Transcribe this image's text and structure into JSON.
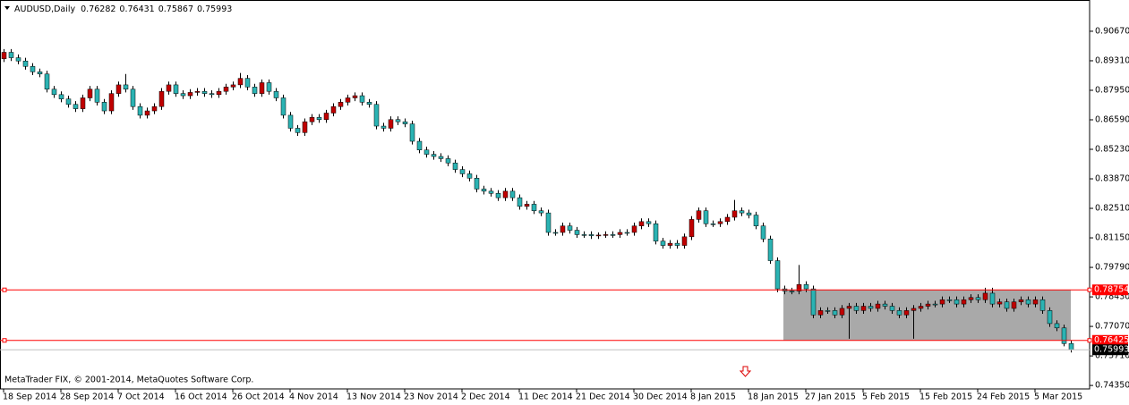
{
  "chart_data": {
    "type": "candlestick",
    "title": "AUDUSD,Daily",
    "footer": "MetaTrader FIX, © 2001-2014, MetaQuotes Software Corp.",
    "up_color": "#c00000",
    "down_color": "#2bb3b3",
    "categories": [
      "18 Sep 2014",
      null,
      null,
      null,
      null,
      null,
      null,
      null,
      "28 Sep 2014",
      null,
      null,
      null,
      null,
      null,
      null,
      null,
      "7 Oct 2014",
      null,
      null,
      null,
      null,
      null,
      null,
      null,
      "16 Oct 2014",
      null,
      null,
      null,
      null,
      null,
      null,
      null,
      "26 Oct 2014",
      null,
      null,
      null,
      null,
      null,
      null,
      null,
      "4 Nov 2014",
      null,
      null,
      null,
      null,
      null,
      null,
      null,
      "13 Nov 2014",
      null,
      null,
      null,
      null,
      null,
      null,
      null,
      "23 Nov 2014",
      null,
      null,
      null,
      null,
      null,
      null,
      null,
      "2 Dec 2014",
      null,
      null,
      null,
      null,
      null,
      null,
      null,
      "11 Dec 2014",
      null,
      null,
      null,
      null,
      null,
      null,
      null,
      "21 Dec 2014",
      null,
      null,
      null,
      null,
      null,
      null,
      null,
      "30 Dec 2014",
      null,
      null,
      null,
      null,
      null,
      null,
      null,
      "8 Jan 2015",
      null,
      null,
      null,
      null,
      null,
      null,
      null,
      "18 Jan 2015",
      null,
      null,
      null,
      null,
      null,
      null,
      null,
      "27 Jan 2015",
      null,
      null,
      null,
      null,
      null,
      null,
      null,
      "5 Feb 2015",
      null,
      null,
      null,
      null,
      null,
      null,
      null,
      "15 Feb 2015",
      null,
      null,
      null,
      null,
      null,
      null,
      null,
      "24 Feb 2015",
      null,
      null,
      null,
      null,
      null,
      null,
      null,
      "5 Mar 2015",
      null,
      null,
      null,
      null,
      null
    ],
    "open": [
      0.894,
      0.897,
      0.8945,
      0.893,
      0.8905,
      0.888,
      0.887,
      0.88,
      0.8775,
      0.8755,
      0.873,
      0.871,
      0.876,
      0.88,
      0.874,
      0.87,
      0.878,
      0.882,
      0.88,
      0.872,
      0.868,
      0.87,
      0.872,
      0.879,
      0.882,
      0.878,
      0.877,
      0.8785,
      0.879,
      0.878,
      0.8775,
      0.879,
      0.881,
      0.882,
      0.885,
      0.881,
      0.878,
      0.883,
      0.879,
      0.876,
      0.868,
      0.862,
      0.86,
      0.865,
      0.867,
      0.866,
      0.869,
      0.872,
      0.874,
      0.876,
      0.877,
      0.874,
      0.873,
      0.863,
      0.862,
      0.866,
      0.865,
      0.864,
      0.856,
      0.852,
      0.85,
      0.849,
      0.848,
      0.846,
      0.843,
      0.841,
      0.839,
      0.834,
      0.833,
      0.832,
      0.83,
      0.833,
      0.83,
      0.826,
      0.827,
      0.824,
      0.823,
      0.814,
      0.814,
      0.817,
      0.815,
      0.813,
      0.813,
      0.8125,
      0.8128,
      0.813,
      0.813,
      0.814,
      0.814,
      0.817,
      0.819,
      0.818,
      0.81,
      0.808,
      0.809,
      0.808,
      0.812,
      0.82,
      0.824,
      0.818,
      0.818,
      0.819,
      0.821,
      0.824,
      0.823,
      0.822,
      0.817,
      0.811,
      0.801,
      0.788,
      0.787,
      0.787,
      0.79,
      0.788,
      0.776,
      0.778,
      0.778,
      0.776,
      0.779,
      0.78,
      0.778,
      0.78,
      0.779,
      0.781,
      0.78,
      0.778,
      0.776,
      0.778,
      0.779,
      0.78,
      0.781,
      0.781,
      0.783,
      0.783,
      0.781,
      0.783,
      0.784,
      0.783,
      0.786,
      0.781,
      0.782,
      0.779,
      0.782,
      0.783,
      0.781,
      0.783,
      0.778,
      0.772,
      0.77,
      0.76282
    ],
    "high": [
      0.8985,
      0.8985,
      0.896,
      0.8945,
      0.892,
      0.8895,
      0.8885,
      0.8815,
      0.879,
      0.877,
      0.8745,
      0.8775,
      0.8815,
      0.8815,
      0.8755,
      0.8795,
      0.8835,
      0.887,
      0.8815,
      0.8735,
      0.8715,
      0.8735,
      0.8805,
      0.8835,
      0.8835,
      0.8795,
      0.88,
      0.8805,
      0.8805,
      0.8795,
      0.8805,
      0.8825,
      0.8835,
      0.8875,
      0.8865,
      0.8825,
      0.8845,
      0.8845,
      0.8805,
      0.8775,
      0.8695,
      0.8635,
      0.8665,
      0.8685,
      0.8685,
      0.8705,
      0.8735,
      0.8755,
      0.8775,
      0.8785,
      0.8785,
      0.8755,
      0.8745,
      0.8645,
      0.8675,
      0.8675,
      0.8665,
      0.8655,
      0.8575,
      0.8535,
      0.8515,
      0.8505,
      0.8495,
      0.8475,
      0.8445,
      0.8425,
      0.8405,
      0.8355,
      0.8345,
      0.8335,
      0.8345,
      0.8345,
      0.8315,
      0.8285,
      0.8285,
      0.8255,
      0.8245,
      0.8155,
      0.8185,
      0.8185,
      0.8165,
      0.8145,
      0.8145,
      0.814,
      0.8145,
      0.8145,
      0.8155,
      0.8155,
      0.8185,
      0.8205,
      0.8205,
      0.8195,
      0.8115,
      0.8105,
      0.8105,
      0.8135,
      0.8215,
      0.8255,
      0.8255,
      0.8195,
      0.8205,
      0.8225,
      0.829,
      0.8255,
      0.8245,
      0.8235,
      0.8185,
      0.8125,
      0.8025,
      0.7895,
      0.7885,
      0.799,
      0.7915,
      0.7895,
      0.7795,
      0.7795,
      0.7795,
      0.7805,
      0.7815,
      0.7815,
      0.7815,
      0.7815,
      0.7825,
      0.7825,
      0.7815,
      0.7795,
      0.7795,
      0.7805,
      0.7815,
      0.7825,
      0.7825,
      0.7845,
      0.7845,
      0.7845,
      0.7845,
      0.7855,
      0.7855,
      0.7885,
      0.7885,
      0.7835,
      0.7835,
      0.7835,
      0.7845,
      0.7845,
      0.7845,
      0.7845,
      0.7795,
      0.7735,
      0.7715,
      0.76431
    ],
    "low": [
      0.8925,
      0.893,
      0.8915,
      0.889,
      0.8865,
      0.8855,
      0.8785,
      0.876,
      0.874,
      0.8715,
      0.8695,
      0.8695,
      0.8745,
      0.8725,
      0.8685,
      0.8685,
      0.8765,
      0.8785,
      0.8705,
      0.8665,
      0.8665,
      0.8685,
      0.8705,
      0.8775,
      0.8765,
      0.8755,
      0.8755,
      0.877,
      0.8765,
      0.876,
      0.876,
      0.8775,
      0.8795,
      0.8805,
      0.8795,
      0.8765,
      0.8765,
      0.8775,
      0.8745,
      0.8665,
      0.8605,
      0.8585,
      0.8585,
      0.8635,
      0.8645,
      0.8645,
      0.8675,
      0.8705,
      0.8725,
      0.8745,
      0.8725,
      0.8715,
      0.8615,
      0.8605,
      0.8605,
      0.8635,
      0.8625,
      0.8545,
      0.8505,
      0.8485,
      0.8475,
      0.8465,
      0.8445,
      0.8415,
      0.8395,
      0.8375,
      0.8325,
      0.8315,
      0.8305,
      0.8285,
      0.8285,
      0.8285,
      0.8245,
      0.8245,
      0.8225,
      0.8215,
      0.8125,
      0.8125,
      0.8125,
      0.8135,
      0.8115,
      0.8115,
      0.811,
      0.811,
      0.8115,
      0.8115,
      0.8115,
      0.8125,
      0.8125,
      0.8155,
      0.8165,
      0.8085,
      0.8065,
      0.8065,
      0.8065,
      0.8065,
      0.8105,
      0.8185,
      0.8165,
      0.8165,
      0.8165,
      0.8175,
      0.8195,
      0.8215,
      0.8205,
      0.8155,
      0.8095,
      0.7995,
      0.7865,
      0.7855,
      0.7855,
      0.7855,
      0.7865,
      0.7745,
      0.7745,
      0.7765,
      0.7745,
      0.7745,
      0.765,
      0.7765,
      0.7765,
      0.7775,
      0.7775,
      0.7785,
      0.7765,
      0.7745,
      0.7745,
      0.765,
      0.7775,
      0.7785,
      0.7795,
      0.7795,
      0.7815,
      0.7795,
      0.7795,
      0.7815,
      0.7815,
      0.7815,
      0.7795,
      0.7795,
      0.7775,
      0.7775,
      0.7805,
      0.7795,
      0.7795,
      0.7765,
      0.7705,
      0.7685,
      0.7615,
      0.75867
    ],
    "close": [
      0.897,
      0.8945,
      0.893,
      0.8905,
      0.888,
      0.887,
      0.88,
      0.8775,
      0.8755,
      0.873,
      0.871,
      0.876,
      0.88,
      0.874,
      0.87,
      0.878,
      0.882,
      0.88,
      0.872,
      0.868,
      0.87,
      0.872,
      0.879,
      0.882,
      0.878,
      0.877,
      0.8785,
      0.879,
      0.878,
      0.8775,
      0.879,
      0.881,
      0.882,
      0.885,
      0.881,
      0.878,
      0.883,
      0.879,
      0.876,
      0.868,
      0.862,
      0.86,
      0.865,
      0.867,
      0.866,
      0.869,
      0.872,
      0.874,
      0.876,
      0.877,
      0.874,
      0.873,
      0.863,
      0.862,
      0.866,
      0.865,
      0.864,
      0.856,
      0.852,
      0.85,
      0.849,
      0.848,
      0.846,
      0.843,
      0.841,
      0.839,
      0.834,
      0.833,
      0.832,
      0.83,
      0.833,
      0.83,
      0.826,
      0.827,
      0.824,
      0.823,
      0.814,
      0.814,
      0.817,
      0.815,
      0.813,
      0.813,
      0.8125,
      0.8128,
      0.813,
      0.813,
      0.814,
      0.814,
      0.817,
      0.819,
      0.818,
      0.81,
      0.808,
      0.809,
      0.808,
      0.812,
      0.82,
      0.824,
      0.818,
      0.818,
      0.819,
      0.821,
      0.824,
      0.823,
      0.822,
      0.817,
      0.811,
      0.801,
      0.788,
      0.787,
      0.787,
      0.79,
      0.788,
      0.776,
      0.778,
      0.778,
      0.776,
      0.779,
      0.78,
      0.778,
      0.78,
      0.779,
      0.781,
      0.78,
      0.778,
      0.776,
      0.778,
      0.779,
      0.78,
      0.781,
      0.781,
      0.783,
      0.783,
      0.781,
      0.783,
      0.784,
      0.783,
      0.786,
      0.781,
      0.782,
      0.779,
      0.782,
      0.783,
      0.781,
      0.783,
      0.778,
      0.772,
      0.77,
      0.7628,
      0.75993
    ],
    "ylim": [
      0.7419,
      0.9211
    ],
    "yticks": [
      {
        "value": 0.9067,
        "label": "0.90670"
      },
      {
        "value": 0.8931,
        "label": "0.89310"
      },
      {
        "value": 0.8795,
        "label": "0.87950"
      },
      {
        "value": 0.8659,
        "label": "0.86590"
      },
      {
        "value": 0.8523,
        "label": "0.85230"
      },
      {
        "value": 0.8387,
        "label": "0.83870"
      },
      {
        "value": 0.8251,
        "label": "0.82510"
      },
      {
        "value": 0.8115,
        "label": "0.81150"
      },
      {
        "value": 0.7979,
        "label": "0.79790"
      },
      {
        "value": 0.7843,
        "label": "0.78430"
      },
      {
        "value": 0.7707,
        "label": "0.77070"
      },
      {
        "value": 0.7571,
        "label": "0.75710"
      },
      {
        "value": 0.7435,
        "label": "0.74350"
      }
    ],
    "levels": [
      0.78754,
      0.76425
    ],
    "level_color": "#ff0000",
    "grid": false
  }
}
